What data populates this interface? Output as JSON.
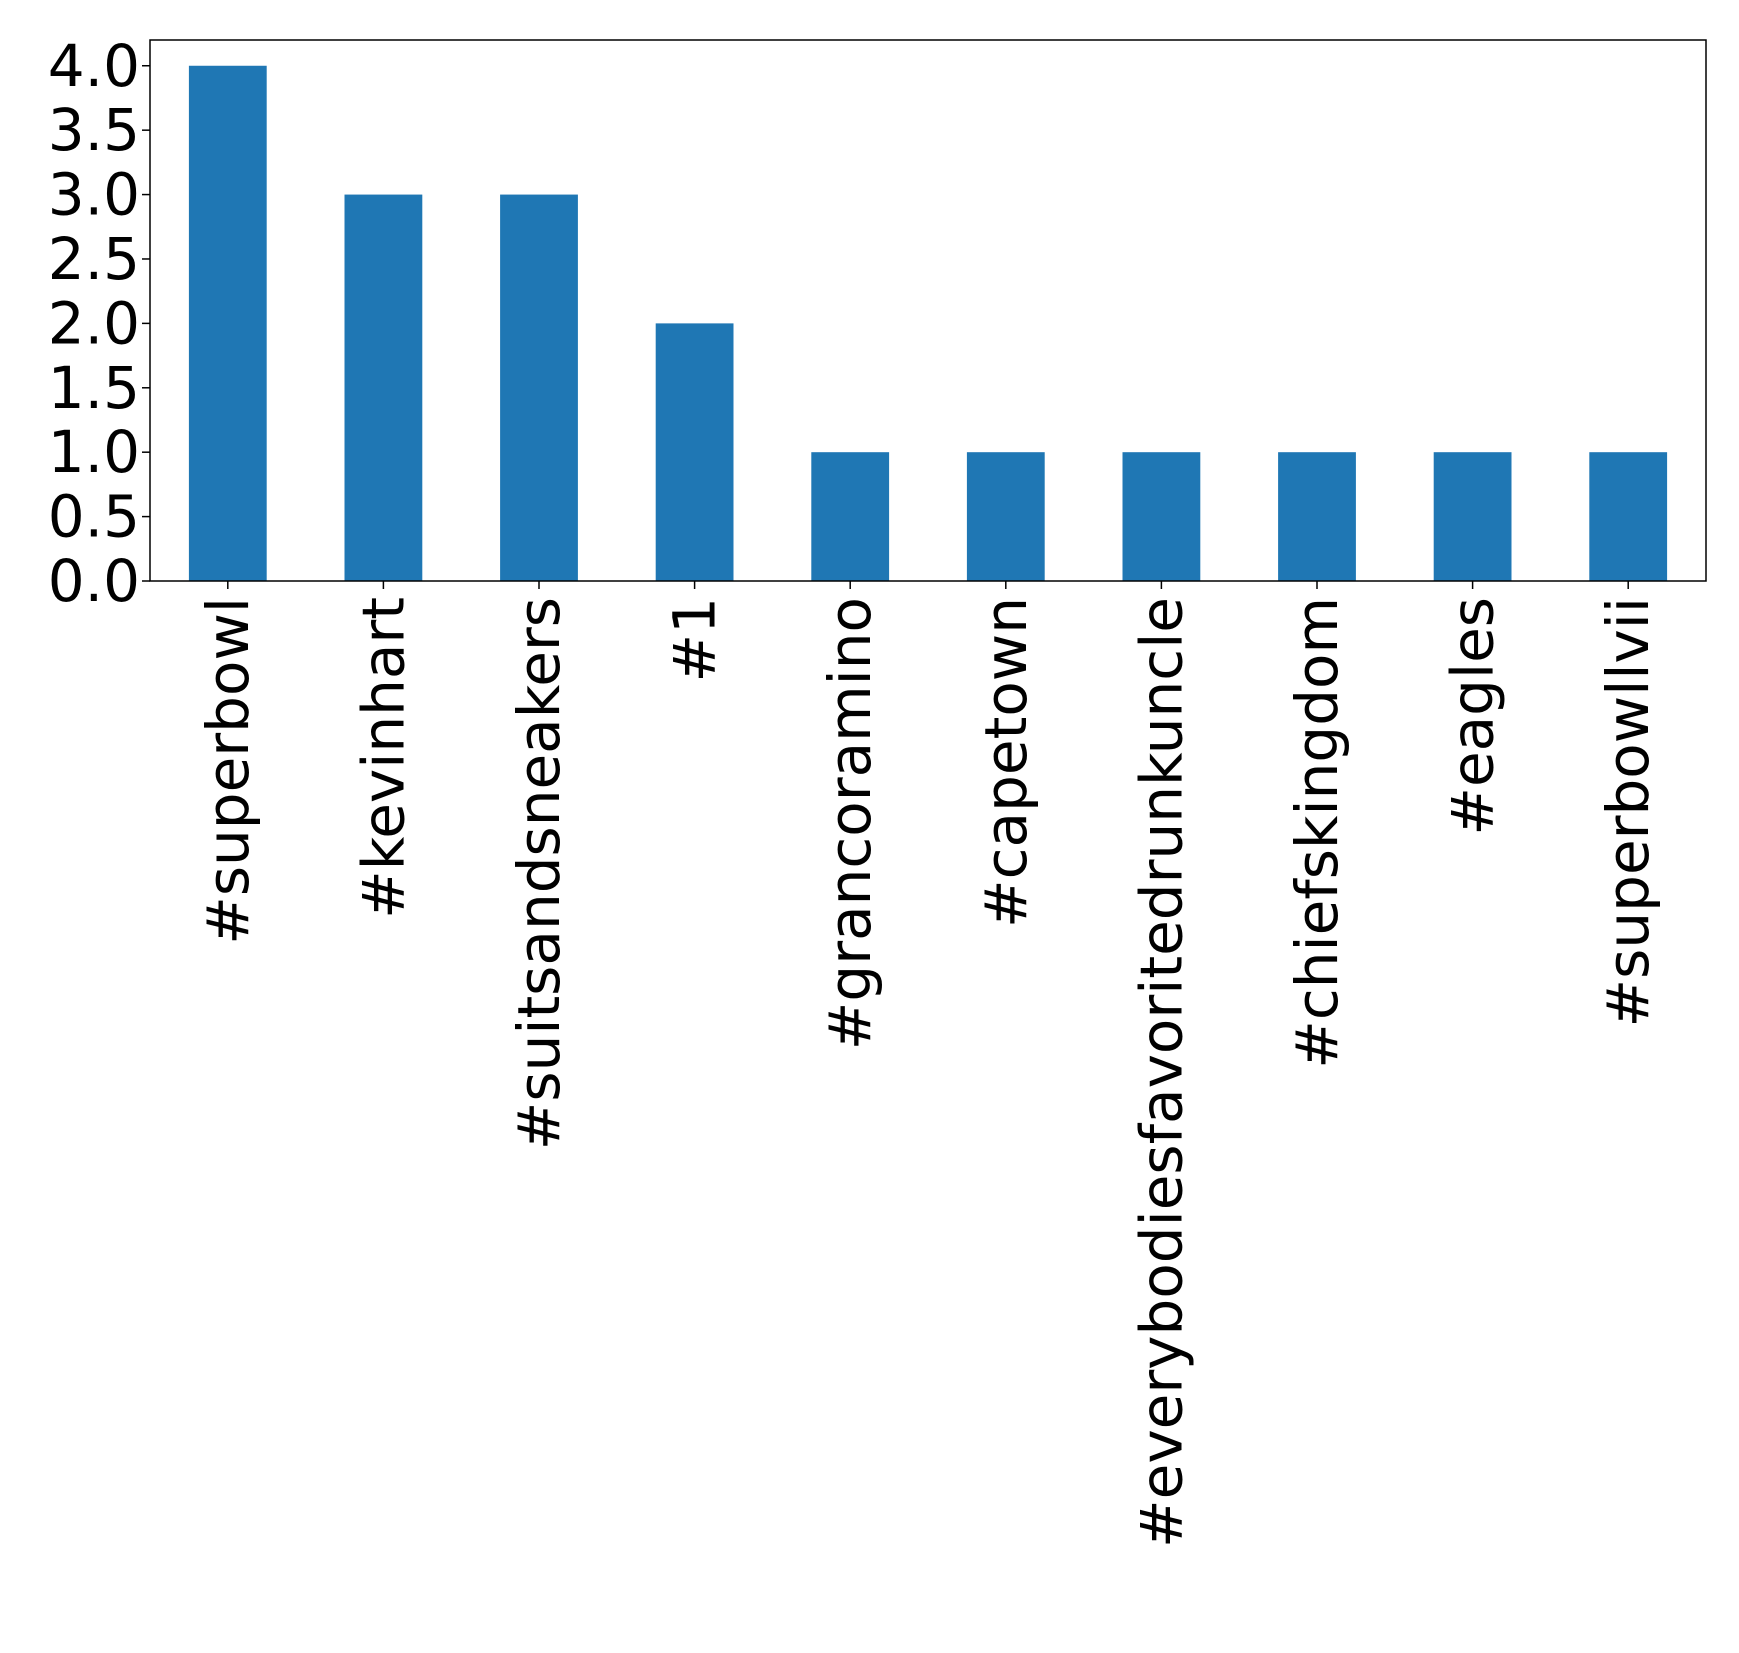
{
  "chart_data": {
    "type": "bar",
    "categories": [
      "#superbowl",
      "#kevinhart",
      "#suitsandsneakers",
      "#1",
      "#grancoramino",
      "#capetown",
      "#everybodiesfavoritedrunkuncle",
      "#chiefskingdom",
      "#eagles",
      "#superbowllvii"
    ],
    "values": [
      4,
      3,
      3,
      2,
      1,
      1,
      1,
      1,
      1,
      1
    ],
    "ylim": [
      0,
      4.2
    ],
    "yticks": [
      0.0,
      0.5,
      1.0,
      1.5,
      2.0,
      2.5,
      3.0,
      3.5,
      4.0
    ],
    "title": "",
    "xlabel": "",
    "ylabel": "",
    "bar_color": "#1f77b4",
    "grid": false,
    "legend": false
  }
}
